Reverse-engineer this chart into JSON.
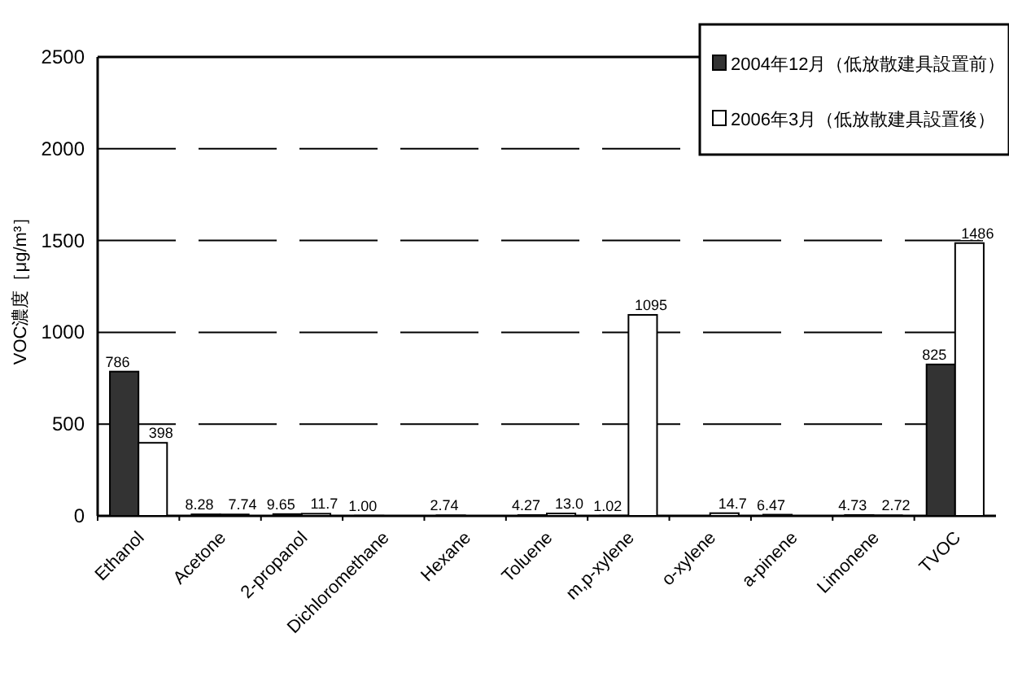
{
  "chart_data": {
    "type": "bar",
    "ylabel": "VOC濃度［μg/m³］",
    "categories": [
      "Ethanol",
      "Acetone",
      "2-propanol",
      "Dichloromethane",
      "Hexane",
      "Toluene",
      "m,p-xylene",
      "o-xylene",
      "a-pinene",
      "Limonene",
      "TVOC"
    ],
    "series": [
      {
        "name": "2004年12月（低放散建具設置前）",
        "color": "#333333",
        "values": [
          786,
          8.28,
          9.65,
          1.0,
          2.74,
          4.27,
          1.02,
          null,
          6.47,
          4.73,
          825
        ],
        "value_labels": [
          "786",
          "8.28",
          "9.65",
          "1.00",
          "2.74",
          "4.27",
          "1.02",
          null,
          "6.47",
          "4.73",
          "825"
        ]
      },
      {
        "name": "2006年3月（低放散建具設置後）",
        "color": "#ffffff",
        "values": [
          398,
          7.74,
          11.7,
          null,
          null,
          13.0,
          1095,
          14.7,
          null,
          2.72,
          1486
        ],
        "value_labels": [
          "398",
          "7.74",
          "11.7",
          null,
          null,
          "13.0",
          "1095",
          "14.7",
          null,
          "2.72",
          "1486"
        ]
      }
    ],
    "ylim": [
      0,
      2500
    ],
    "yticks": [
      0,
      500,
      1000,
      1500,
      2000,
      2500
    ],
    "grid": "y",
    "legend": "top right"
  }
}
